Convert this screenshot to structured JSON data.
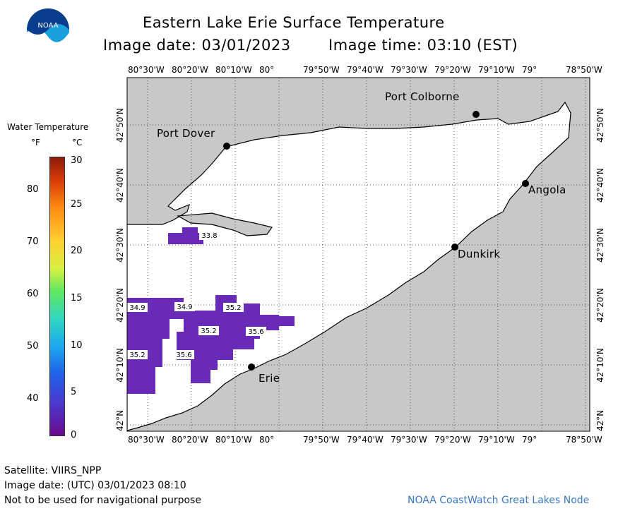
{
  "title": "Eastern Lake Erie Surface Temperature",
  "image_date_label": "Image date: 03/01/2023",
  "image_time_label": "Image time: 03:10 (EST)",
  "logo_text": "NOAA",
  "legend": {
    "title": "Water Temperature",
    "unit_f": "°F",
    "unit_c": "°C",
    "f_ticks": [
      "80",
      "70",
      "60",
      "50",
      "40"
    ],
    "c_ticks": [
      "30",
      "25",
      "20",
      "15",
      "10",
      "5",
      "0"
    ]
  },
  "top_lon_labels": [
    "80°30'W",
    "80°20'W",
    "80°10'W",
    "80°",
    "79°50'W",
    "79°40'W",
    "79°30'W",
    "79°20'W",
    "79°10'W",
    "79°",
    "78°50'W"
  ],
  "bottom_lon_labels": [
    "80°30'W",
    "80°20'W",
    "80°10'W",
    "80°",
    "79°50'W",
    "79°40'W",
    "79°30'W",
    "79°20'W",
    "79°10'W",
    "79°",
    "78°50'W"
  ],
  "lat_labels": [
    "42°50'N",
    "42°40'N",
    "42°30'N",
    "42°20'N",
    "42°10'N",
    "42°N"
  ],
  "cities": [
    "Port Colborne",
    "Port Dover",
    "Angola",
    "Dunkirk",
    "Erie"
  ],
  "temp_labels": [
    "33.8",
    "34.9",
    "34.9",
    "35.2",
    "35.2",
    "35.6",
    "35.2",
    "35.6"
  ],
  "footer": {
    "satellite": "Satellite: VIIRS_NPP",
    "utc_date": "Image date: (UTC) 03/01/2023  08:10",
    "disclaimer": "Not to be used for navigational purpose",
    "credit": "NOAA CoastWatch Great Lakes Node"
  },
  "colors": {
    "land": "#c8c8c8",
    "water": "#ffffff",
    "cold": "#6a2ab8"
  }
}
